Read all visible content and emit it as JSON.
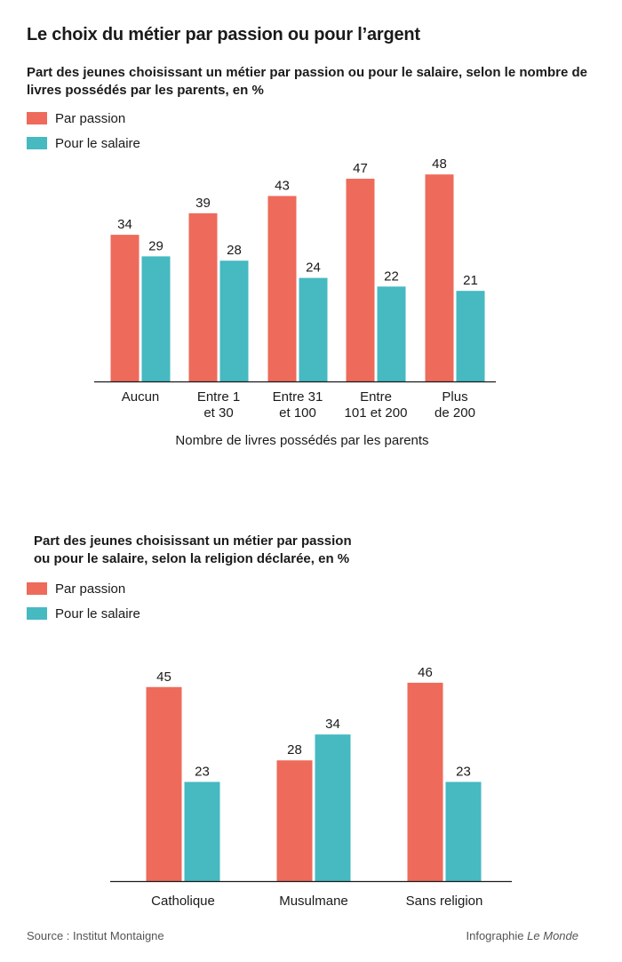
{
  "title": "Le choix du métier par passion ou pour l’argent",
  "colors": {
    "passion": "#ee6a5a",
    "salaire": "#46b9c1",
    "axis": "#1a1a1a"
  },
  "chart_data": [
    {
      "type": "bar",
      "subtitle": "Part des jeunes choisissant un métier par passion ou pour le salaire, selon le nombre de livres possédés par les parents, en %",
      "legend": [
        "Par passion",
        "Pour le salaire"
      ],
      "categories": [
        [
          "Aucun"
        ],
        [
          "Entre 1",
          "et 30"
        ],
        [
          "Entre 31",
          "et 100"
        ],
        [
          "Entre",
          "101 et 200"
        ],
        [
          "Plus",
          "de 200"
        ]
      ],
      "series": [
        {
          "name": "Par passion",
          "values": [
            34,
            39,
            43,
            47,
            48
          ]
        },
        {
          "name": "Pour le salaire",
          "values": [
            29,
            28,
            24,
            22,
            21
          ]
        }
      ],
      "xlabel": "Nombre de livres possédés par les parents",
      "ylabel": "",
      "ylim": [
        0,
        50
      ],
      "grid": false
    },
    {
      "type": "bar",
      "subtitle": "Part des jeunes choisissant un métier par passion ou pour le salaire, selon la religion déclarée, en %",
      "legend": [
        "Par passion",
        "Pour le salaire"
      ],
      "categories": [
        [
          "Catholique"
        ],
        [
          "Musulmane"
        ],
        [
          "Sans religion"
        ]
      ],
      "series": [
        {
          "name": "Par passion",
          "values": [
            45,
            28,
            46
          ]
        },
        {
          "name": "Pour le salaire",
          "values": [
            23,
            34,
            23
          ]
        }
      ],
      "xlabel": "",
      "ylabel": "",
      "ylim": [
        0,
        50
      ],
      "grid": false
    }
  ],
  "subtitle2_lines": [
    "Part des jeunes choisissant un métier par passion",
    "ou pour le salaire, selon la religion déclarée, en %"
  ],
  "source": "Source : Institut Montaigne",
  "credit_prefix": "Infographie",
  "credit_brand": "Le Monde"
}
